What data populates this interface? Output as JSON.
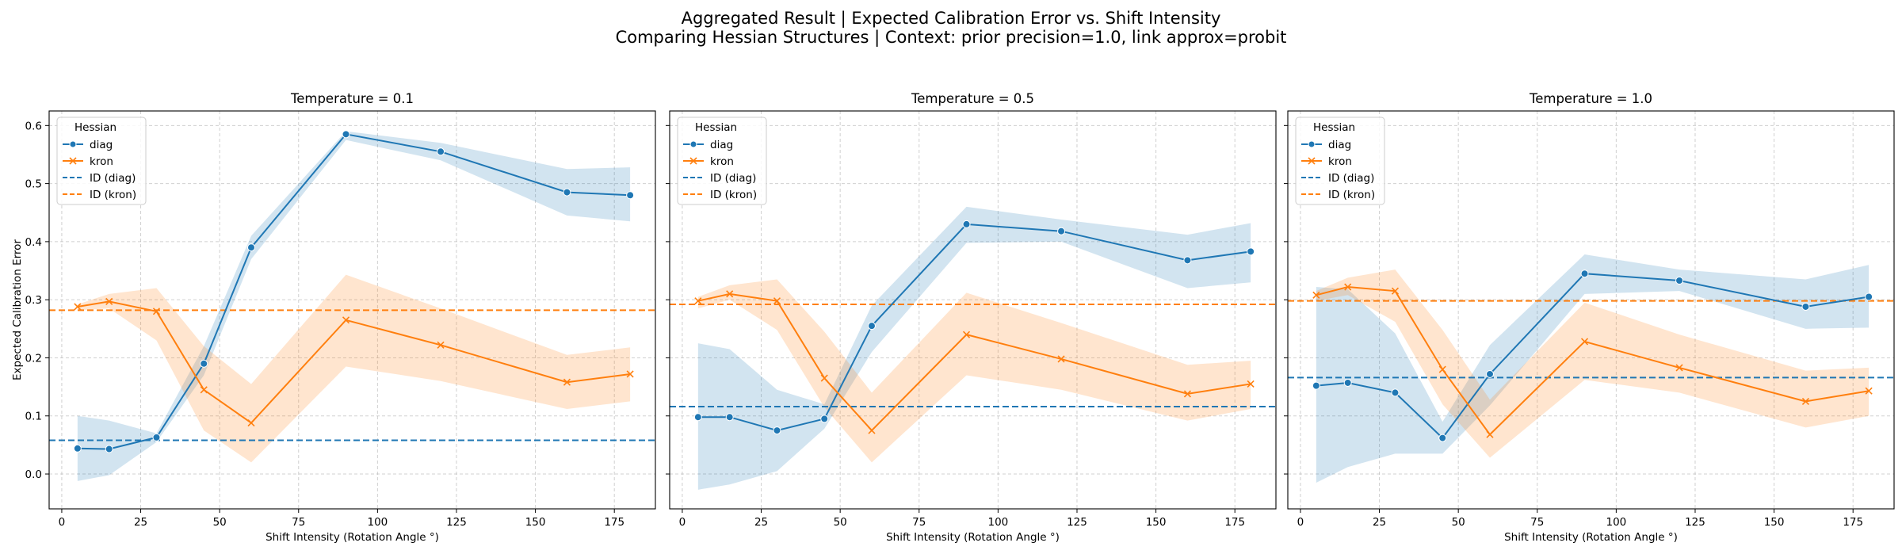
{
  "figure": {
    "title_line1": "Aggregated Result | Expected Calibration Error vs. Shift Intensity",
    "title_line2": "Comparing Hessian Structures | Context: prior precision=1.0, link approx=probit"
  },
  "colors": {
    "diag": "#1f77b4",
    "kron": "#ff7f0e"
  },
  "chart_data": [
    {
      "type": "line",
      "title": "Temperature = 0.1",
      "xlabel": "Shift Intensity (Rotation Angle °)",
      "ylabel": "Expected Calibration Error",
      "xlim": [
        -4,
        188
      ],
      "ylim": [
        -0.06,
        0.625
      ],
      "xticks": [
        0,
        25,
        50,
        75,
        100,
        125,
        150,
        175
      ],
      "yticks": [
        0.0,
        0.1,
        0.2,
        0.3,
        0.4,
        0.5,
        0.6
      ],
      "grid": true,
      "legend": {
        "title": "Hessian",
        "placement": "top-left",
        "entries": [
          "diag",
          "kron",
          "ID (diag)",
          "ID (kron)"
        ]
      },
      "x": [
        5,
        15,
        30,
        45,
        60,
        90,
        120,
        160,
        180
      ],
      "series": [
        {
          "name": "diag",
          "marker": "circle",
          "values": [
            0.044,
            0.043,
            0.063,
            0.19,
            0.39,
            0.585,
            0.555,
            0.485,
            0.48
          ],
          "lower": [
            -0.012,
            -0.002,
            0.055,
            0.17,
            0.37,
            0.575,
            0.54,
            0.445,
            0.435
          ],
          "upper": [
            0.1,
            0.092,
            0.07,
            0.22,
            0.41,
            0.59,
            0.57,
            0.525,
            0.528
          ]
        },
        {
          "name": "kron",
          "marker": "x",
          "values": [
            0.288,
            0.297,
            0.28,
            0.145,
            0.088,
            0.265,
            0.222,
            0.158,
            0.172
          ],
          "lower": [
            0.282,
            0.285,
            0.23,
            0.075,
            0.02,
            0.185,
            0.16,
            0.112,
            0.125
          ],
          "upper": [
            0.292,
            0.31,
            0.32,
            0.22,
            0.155,
            0.343,
            0.285,
            0.205,
            0.218
          ]
        }
      ],
      "reference_lines": [
        {
          "name": "ID (diag)",
          "y": 0.058
        },
        {
          "name": "ID (kron)",
          "y": 0.282
        }
      ]
    },
    {
      "type": "line",
      "title": "Temperature = 0.5",
      "xlabel": "Shift Intensity (Rotation Angle °)",
      "ylabel": "",
      "xlim": [
        -4,
        188
      ],
      "ylim": [
        -0.06,
        0.625
      ],
      "xticks": [
        0,
        25,
        50,
        75,
        100,
        125,
        150,
        175
      ],
      "yticks": [
        0.0,
        0.1,
        0.2,
        0.3,
        0.4,
        0.5,
        0.6
      ],
      "grid": true,
      "legend": {
        "title": "Hessian",
        "placement": "top-left",
        "entries": [
          "diag",
          "kron",
          "ID (diag)",
          "ID (kron)"
        ]
      },
      "x": [
        5,
        15,
        30,
        45,
        60,
        90,
        120,
        160,
        180
      ],
      "series": [
        {
          "name": "diag",
          "marker": "circle",
          "values": [
            0.098,
            0.098,
            0.075,
            0.095,
            0.255,
            0.43,
            0.418,
            0.368,
            0.383
          ],
          "lower": [
            -0.027,
            -0.018,
            0.005,
            0.078,
            0.21,
            0.398,
            0.4,
            0.32,
            0.33
          ],
          "upper": [
            0.225,
            0.215,
            0.145,
            0.12,
            0.29,
            0.46,
            0.438,
            0.412,
            0.432
          ]
        },
        {
          "name": "kron",
          "marker": "x",
          "values": [
            0.298,
            0.31,
            0.298,
            0.165,
            0.075,
            0.24,
            0.198,
            0.138,
            0.155
          ],
          "lower": [
            0.285,
            0.3,
            0.248,
            0.115,
            0.02,
            0.17,
            0.145,
            0.092,
            0.112
          ],
          "upper": [
            0.305,
            0.325,
            0.335,
            0.245,
            0.14,
            0.312,
            0.26,
            0.188,
            0.195
          ]
        }
      ],
      "reference_lines": [
        {
          "name": "ID (diag)",
          "y": 0.116
        },
        {
          "name": "ID (kron)",
          "y": 0.292
        }
      ]
    },
    {
      "type": "line",
      "title": "Temperature = 1.0",
      "xlabel": "Shift Intensity (Rotation Angle °)",
      "ylabel": "",
      "xlim": [
        -4,
        188
      ],
      "ylim": [
        -0.06,
        0.625
      ],
      "xticks": [
        0,
        25,
        50,
        75,
        100,
        125,
        150,
        175
      ],
      "yticks": [
        0.0,
        0.1,
        0.2,
        0.3,
        0.4,
        0.5,
        0.6
      ],
      "grid": true,
      "legend": {
        "title": "Hessian",
        "placement": "top-left",
        "entries": [
          "diag",
          "kron",
          "ID (diag)",
          "ID (kron)"
        ]
      },
      "x": [
        5,
        15,
        30,
        45,
        60,
        90,
        120,
        160,
        180
      ],
      "series": [
        {
          "name": "diag",
          "marker": "circle",
          "values": [
            0.152,
            0.157,
            0.14,
            0.062,
            0.172,
            0.345,
            0.333,
            0.288,
            0.305
          ],
          "lower": [
            -0.015,
            0.012,
            0.035,
            0.035,
            0.118,
            0.31,
            0.315,
            0.25,
            0.252
          ],
          "upper": [
            0.322,
            0.318,
            0.242,
            0.09,
            0.222,
            0.378,
            0.352,
            0.335,
            0.36
          ]
        },
        {
          "name": "kron",
          "marker": "x",
          "values": [
            0.308,
            0.322,
            0.315,
            0.18,
            0.068,
            0.228,
            0.183,
            0.125,
            0.143
          ],
          "lower": [
            0.298,
            0.308,
            0.262,
            0.12,
            0.028,
            0.162,
            0.14,
            0.08,
            0.1
          ],
          "upper": [
            0.315,
            0.338,
            0.352,
            0.248,
            0.128,
            0.295,
            0.24,
            0.178,
            0.183
          ]
        }
      ],
      "reference_lines": [
        {
          "name": "ID (diag)",
          "y": 0.166
        },
        {
          "name": "ID (kron)",
          "y": 0.298
        }
      ]
    }
  ]
}
